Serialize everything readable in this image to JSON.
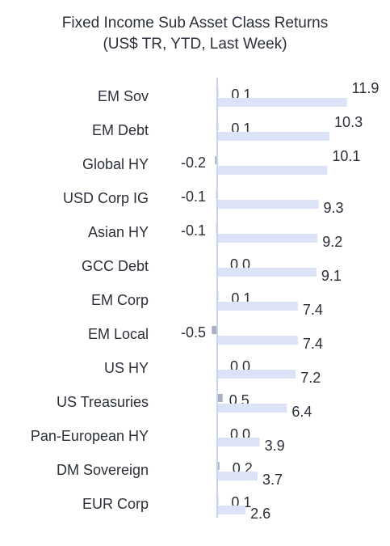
{
  "chart_data": {
    "type": "bar",
    "orientation": "horizontal",
    "title": "Fixed Income Sub Asset Class Returns",
    "subtitle": "(US$ TR, YTD, Last Week)",
    "categories": [
      "EM Sov",
      "EM Debt",
      "Global HY",
      "USD Corp IG",
      "Asian HY",
      "GCC Debt",
      "EM Corp",
      "EM Local",
      "US HY",
      "US Treasuries",
      "Pan-European HY",
      "DM Sovereign",
      "EUR Corp"
    ],
    "series": [
      {
        "name": "",
        "values": [
          0.1,
          0.1,
          -0.2,
          -0.1,
          -0.1,
          0.0,
          0.1,
          -0.5,
          0.0,
          0.5,
          0.0,
          0.2,
          0.1
        ],
        "labels": [
          "0.1",
          "0.1",
          "-0.2",
          "-0.1",
          "-0.1",
          "0.0",
          "0.1",
          "-0.5",
          "0.0",
          "0.5",
          "0.0",
          "0.2",
          "0.1"
        ],
        "color": "#aab0c2"
      },
      {
        "name": "",
        "values": [
          11.9,
          10.3,
          10.1,
          9.3,
          9.2,
          9.1,
          7.4,
          7.4,
          7.2,
          6.4,
          3.9,
          3.7,
          2.6
        ],
        "labels": [
          "11.9",
          "10.3",
          "10.1",
          "9.3",
          "9.2",
          "9.1",
          "7.4",
          "7.4",
          "7.2",
          "6.4",
          "3.9",
          "3.7",
          "2.6"
        ],
        "color": "#dde3f6"
      }
    ],
    "axis_line_color": "#c9d2ee",
    "grid": false,
    "legend": "none"
  }
}
